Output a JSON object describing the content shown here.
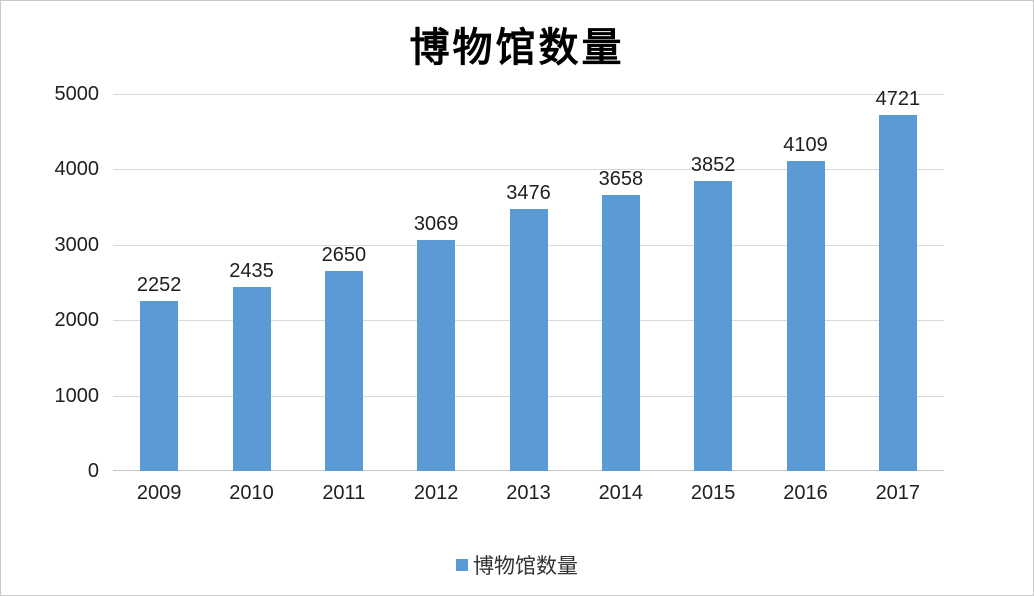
{
  "title": "博物馆数量",
  "legend": {
    "label": "博物馆数量",
    "marker_color": "#5b9bd5"
  },
  "chart_data": {
    "type": "bar",
    "title": "博物馆数量",
    "series_name": "博物馆数量",
    "categories": [
      "2009",
      "2010",
      "2011",
      "2012",
      "2013",
      "2014",
      "2015",
      "2016",
      "2017"
    ],
    "values": [
      2252,
      2435,
      2650,
      3069,
      3476,
      3658,
      3852,
      4109,
      4721
    ],
    "data_labels": [
      "2252",
      "2435",
      "2650",
      "3069",
      "3476",
      "3658",
      "3852",
      "4109",
      "4721"
    ],
    "xlabel": "",
    "ylabel": "",
    "ylim": [
      0,
      5000
    ],
    "yticks": [
      0,
      1000,
      2000,
      3000,
      4000,
      5000
    ],
    "grid": true,
    "legend_position": "bottom",
    "bar_color": "#5b9bd5",
    "gridline_color": "#d9d9d9",
    "axis_line_color": "#c6c6c6",
    "label_color": "#1f1f1f"
  }
}
